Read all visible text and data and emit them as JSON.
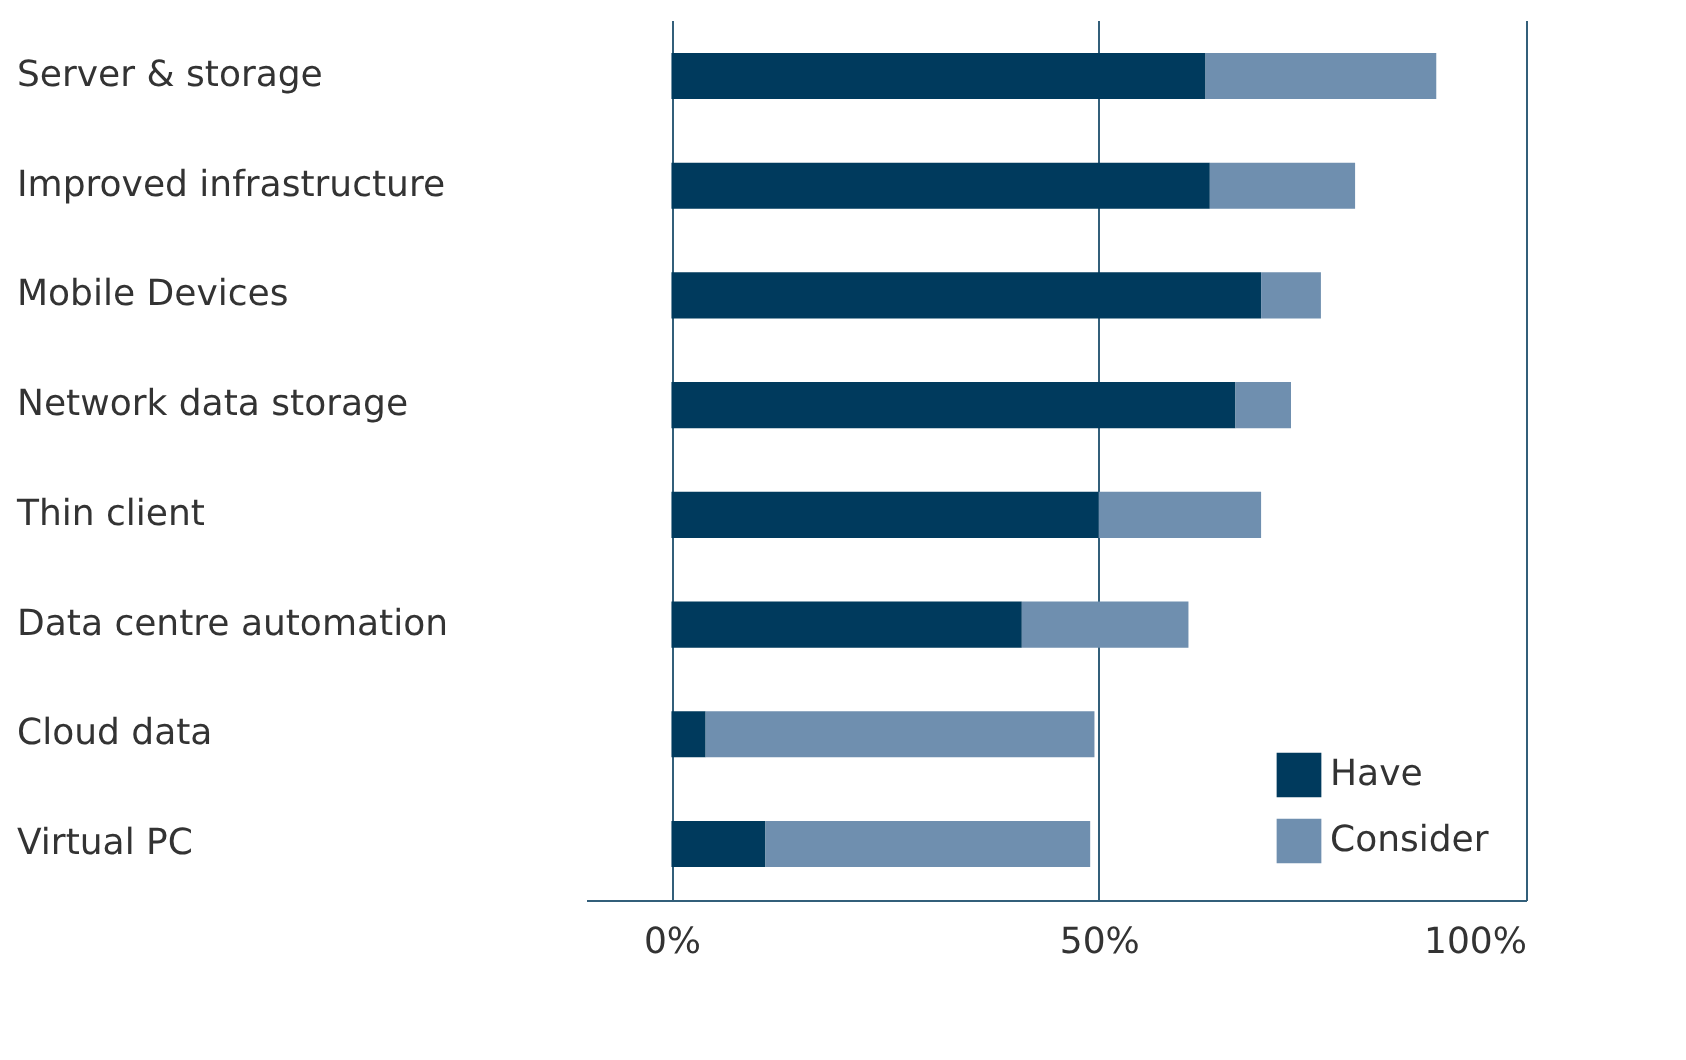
{
  "chart_data": {
    "type": "bar",
    "orientation": "horizontal",
    "stacked": true,
    "categories": [
      "Server & storage",
      "Improved infrastructure",
      "Mobile Devices",
      "Network data storage",
      "Thin client",
      "Data centre automation",
      "Cloud data",
      "Virtual PC"
    ],
    "series": [
      {
        "name": "Have",
        "color": "#003a5d",
        "values": [
          62.5,
          63,
          69,
          66,
          50,
          41,
          4,
          11
        ]
      },
      {
        "name": "Consider",
        "color": "#6f8faf",
        "values": [
          27,
          17,
          7,
          6.5,
          19,
          19.5,
          45.5,
          38
        ]
      }
    ],
    "xlim": [
      -10,
      100
    ],
    "xticks": [
      {
        "value": 0,
        "label": "0%"
      },
      {
        "value": 50,
        "label": "50%"
      },
      {
        "value": 100,
        "label": "100%"
      }
    ],
    "grid": "x",
    "legend": "bottom right"
  }
}
